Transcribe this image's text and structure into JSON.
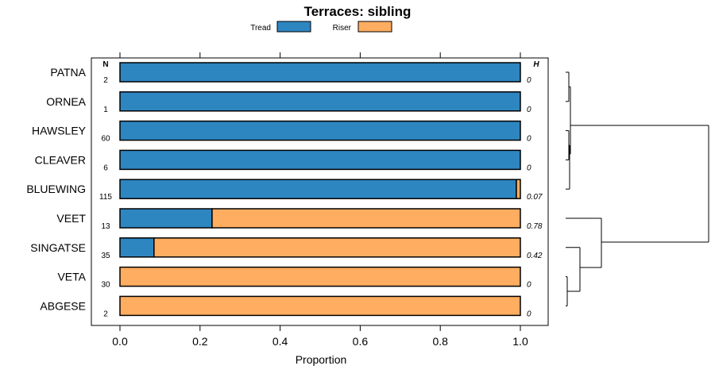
{
  "chart_data": {
    "type": "stacked-bar-horizontal",
    "title": "Terraces: sibling",
    "xlabel": "Proportion",
    "ylabel": "",
    "xlim": [
      0,
      1
    ],
    "x_ticks": [
      "0.0",
      "0.2",
      "0.4",
      "0.6",
      "0.8",
      "1.0"
    ],
    "n_header": "N",
    "h_header": "H",
    "legend": [
      {
        "name": "Tread",
        "color": "#2E86C1"
      },
      {
        "name": "Riser",
        "color": "#FFAD60"
      }
    ],
    "categories": [
      "PATNA",
      "ORNEA",
      "HAWSLEY",
      "CLEAVER",
      "BLUEWING",
      "VEET",
      "SINGATSE",
      "VETA",
      "ABGESE"
    ],
    "n": [
      "2",
      "1",
      "60",
      "6",
      "115",
      "13",
      "35",
      "30",
      "2"
    ],
    "h": [
      "0",
      "0",
      "0",
      "0",
      "0.07",
      "0.78",
      "0.42",
      "0",
      "0"
    ],
    "series": [
      {
        "name": "Tread",
        "values": [
          1.0,
          1.0,
          1.0,
          1.0,
          0.99,
          0.23,
          0.085,
          0.0,
          0.0
        ]
      },
      {
        "name": "Riser",
        "values": [
          0.0,
          0.0,
          0.0,
          0.0,
          0.01,
          0.77,
          0.915,
          1.0,
          1.0
        ]
      }
    ],
    "dendrogram": {
      "type": "hierarchical-clustering",
      "leaves": [
        "PATNA",
        "ORNEA",
        "HAWSLEY",
        "CLEAVER",
        "BLUEWING",
        "VEET",
        "SINGATSE",
        "VETA",
        "ABGESE"
      ]
    }
  }
}
